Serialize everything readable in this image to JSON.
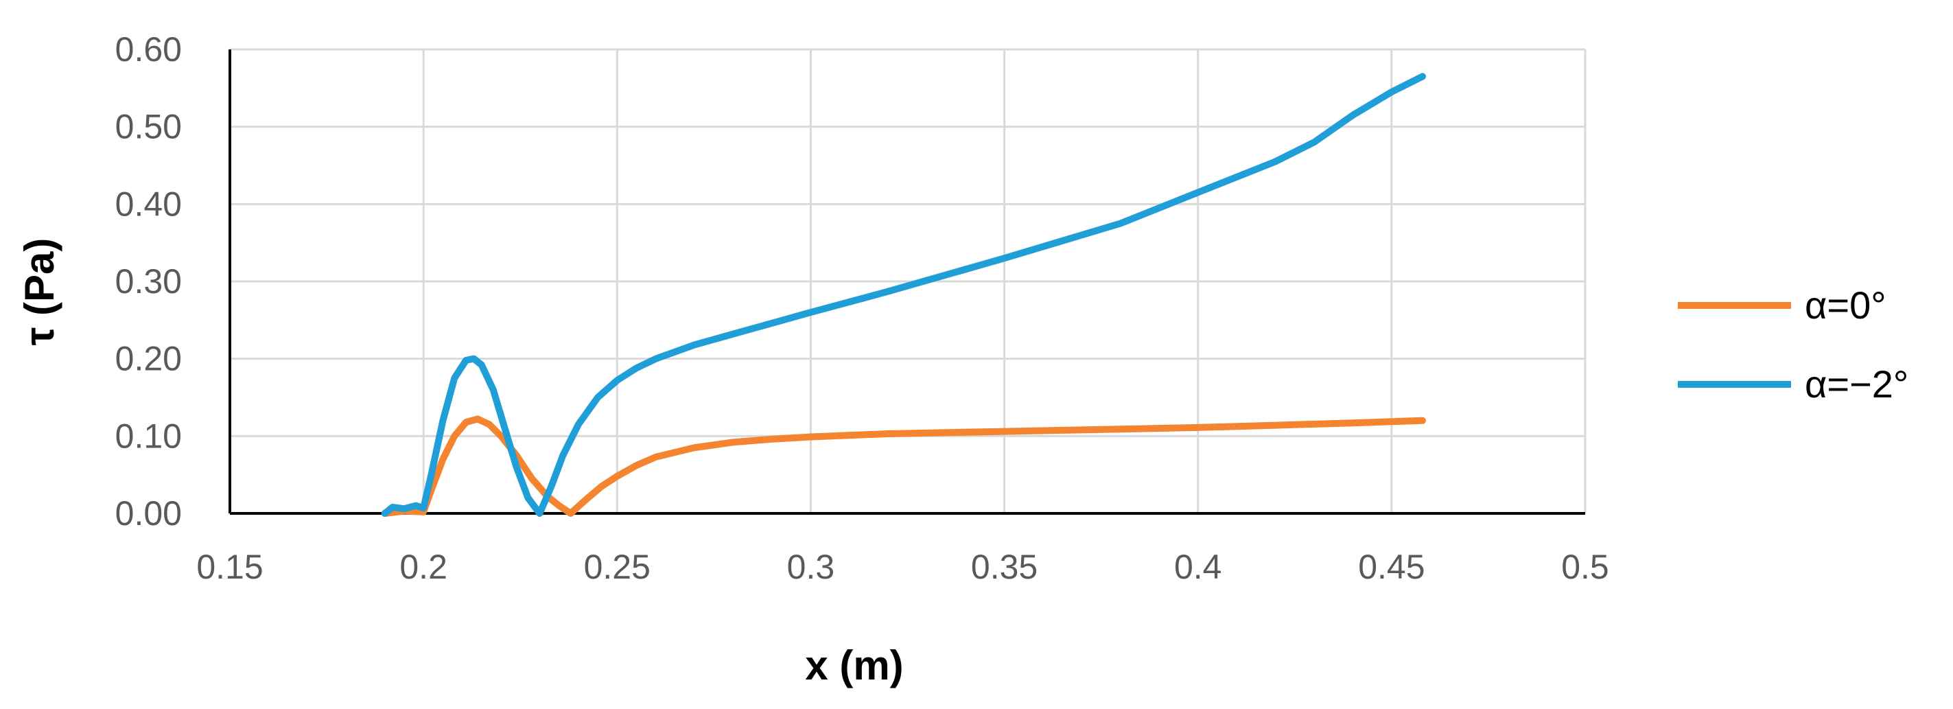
{
  "chart_data": {
    "type": "line",
    "title": "",
    "xlabel": "x (m)",
    "ylabel": "τ (Pa)",
    "xlim": [
      0.15,
      0.5
    ],
    "ylim": [
      0,
      0.6
    ],
    "x_ticks": [
      "0.15",
      "0.2",
      "0.25",
      "0.3",
      "0.35",
      "0.4",
      "0.45",
      "0.5"
    ],
    "y_ticks": [
      "0.00",
      "0.10",
      "0.20",
      "0.30",
      "0.40",
      "0.50",
      "0.60"
    ],
    "grid": true,
    "legend_position": "right",
    "series": [
      {
        "name": "α=0°",
        "color": "#F4842F",
        "x": [
          0.19,
          0.195,
          0.2,
          0.202,
          0.205,
          0.208,
          0.211,
          0.214,
          0.217,
          0.22,
          0.224,
          0.228,
          0.232,
          0.235,
          0.238,
          0.242,
          0.246,
          0.25,
          0.255,
          0.26,
          0.27,
          0.28,
          0.29,
          0.3,
          0.32,
          0.35,
          0.38,
          0.4,
          0.42,
          0.44,
          0.458
        ],
        "values": [
          0.0,
          0.003,
          0.002,
          0.03,
          0.07,
          0.1,
          0.118,
          0.122,
          0.115,
          0.1,
          0.075,
          0.045,
          0.022,
          0.01,
          0.0,
          0.018,
          0.035,
          0.048,
          0.062,
          0.073,
          0.085,
          0.092,
          0.096,
          0.099,
          0.103,
          0.106,
          0.109,
          0.111,
          0.114,
          0.117,
          0.12
        ]
      },
      {
        "name": "α=−2°",
        "color": "#1F9ED8",
        "x": [
          0.19,
          0.192,
          0.195,
          0.198,
          0.2,
          0.202,
          0.205,
          0.208,
          0.211,
          0.213,
          0.215,
          0.218,
          0.221,
          0.224,
          0.227,
          0.23,
          0.233,
          0.236,
          0.24,
          0.245,
          0.25,
          0.255,
          0.26,
          0.27,
          0.28,
          0.3,
          0.32,
          0.35,
          0.38,
          0.4,
          0.42,
          0.43,
          0.44,
          0.45,
          0.458
        ],
        "values": [
          0.0,
          0.008,
          0.006,
          0.01,
          0.007,
          0.05,
          0.12,
          0.175,
          0.198,
          0.2,
          0.192,
          0.16,
          0.11,
          0.06,
          0.02,
          0.0,
          0.035,
          0.075,
          0.115,
          0.15,
          0.172,
          0.188,
          0.2,
          0.218,
          0.232,
          0.26,
          0.287,
          0.33,
          0.375,
          0.415,
          0.455,
          0.48,
          0.515,
          0.545,
          0.565
        ]
      }
    ]
  }
}
